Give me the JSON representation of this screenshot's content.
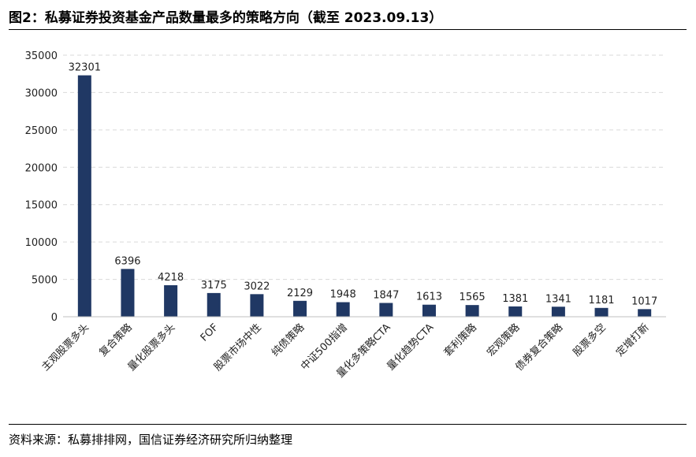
{
  "title": "图2：私募证券投资基金产品数量最多的策略方向（截至 2023.09.13）",
  "source": "资料来源：私募排排网，国信证券经济研究所归纳整理",
  "colors": {
    "bar": "#203864",
    "grid": "#d9d9d9",
    "axis": "#bfbfbf"
  },
  "chart_data": {
    "type": "bar",
    "title": "图2：私募证券投资基金产品数量最多的策略方向（截至 2023.09.13）",
    "xlabel": "",
    "ylabel": "",
    "ylim": [
      0,
      35000
    ],
    "yticks": [
      0,
      5000,
      10000,
      15000,
      20000,
      25000,
      30000,
      35000
    ],
    "grid": true,
    "legend": "none",
    "categories": [
      "主观股票多头",
      "复合策略",
      "量化股票多头",
      "FOF",
      "股票市场中性",
      "纯债策略",
      "中证500指增",
      "量化多策略CTA",
      "量化趋势CTA",
      "套利策略",
      "宏观策略",
      "债券复合策略",
      "股票多空",
      "定增打新"
    ],
    "values": [
      32301,
      6396,
      4218,
      3175,
      3022,
      2129,
      1948,
      1847,
      1613,
      1565,
      1381,
      1341,
      1181,
      1017
    ],
    "value_labels": [
      "32301",
      "6396",
      "4218",
      "3175",
      "3022",
      "2129",
      "1948",
      "1847",
      "1613",
      "1565",
      "1381",
      "1341",
      "1181",
      "1017"
    ]
  }
}
